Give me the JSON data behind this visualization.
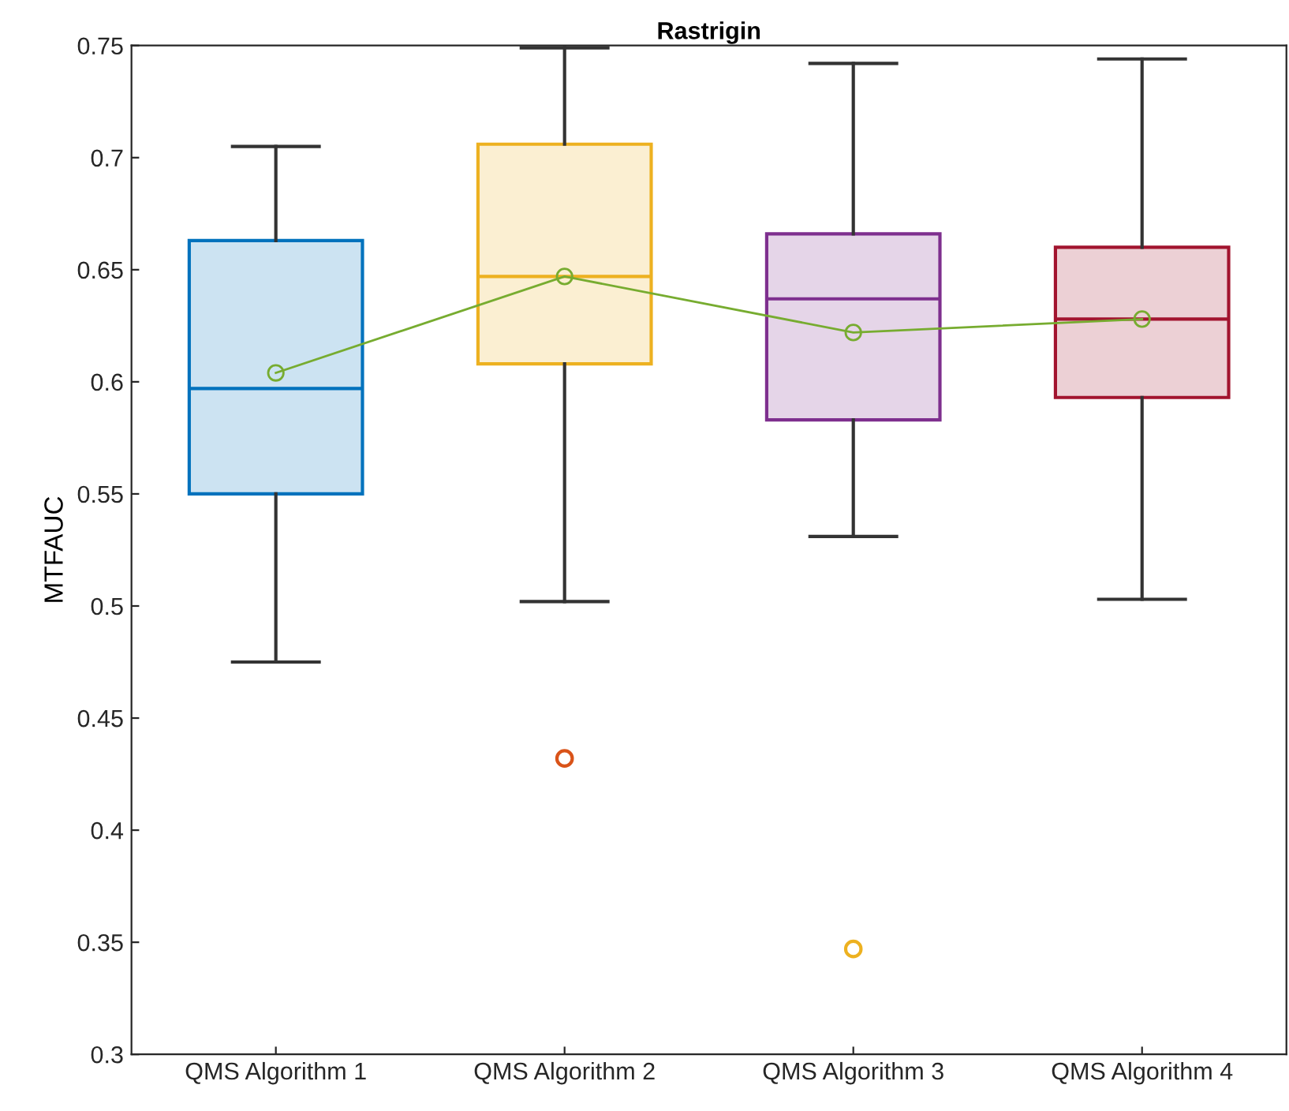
{
  "chart_data": {
    "type": "box",
    "title": "Rastrigin",
    "ylabel": "MTFAUC",
    "categories": [
      "QMS Algorithm 1",
      "QMS Algorithm 2",
      "QMS Algorithm 3",
      "QMS Algorithm 4"
    ],
    "colors": [
      "#0072bd",
      "#edb120",
      "#7e2f8e",
      "#a2142f"
    ],
    "boxes": [
      {
        "low": 0.475,
        "q1": 0.55,
        "median": 0.597,
        "q3": 0.663,
        "high": 0.705
      },
      {
        "low": 0.502,
        "q1": 0.608,
        "median": 0.647,
        "q3": 0.706,
        "high": 0.749
      },
      {
        "low": 0.531,
        "q1": 0.583,
        "median": 0.637,
        "q3": 0.666,
        "high": 0.742
      },
      {
        "low": 0.503,
        "q1": 0.593,
        "median": 0.628,
        "q3": 0.66,
        "high": 0.744
      }
    ],
    "series": [
      {
        "type": "scatter",
        "x": [
          "QMS Algorithm 2",
          "QMS Algorithm 3"
        ],
        "values": [
          0.432,
          0.347
        ],
        "colors": [
          "#d95319",
          "#edb120"
        ],
        "marker": "circle"
      },
      {
        "type": "line",
        "x": [
          "QMS Algorithm 1",
          "QMS Algorithm 2",
          "QMS Algorithm 3",
          "QMS Algorithm 4"
        ],
        "values": [
          0.604,
          0.647,
          0.622,
          0.628
        ],
        "color": "#77ac30",
        "marker": "circle"
      }
    ],
    "ylim": [
      0.3,
      0.75
    ],
    "yticks": [
      0.3,
      0.35,
      0.4,
      0.45,
      0.5,
      0.55,
      0.6,
      0.65,
      0.7,
      0.75
    ],
    "grid": false
  }
}
